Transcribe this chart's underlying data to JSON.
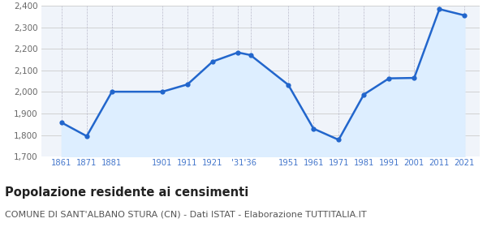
{
  "years": [
    1861,
    1871,
    1881,
    1901,
    1911,
    1921,
    1931,
    1936,
    1951,
    1961,
    1971,
    1981,
    1991,
    2001,
    2011,
    2021
  ],
  "population": [
    1858,
    1795,
    2001,
    2001,
    2035,
    2141,
    2183,
    2171,
    2033,
    1830,
    1778,
    1988,
    2063,
    2065,
    2384,
    2355
  ],
  "ylim": [
    1700,
    2400
  ],
  "yticks": [
    1700,
    1800,
    1900,
    2000,
    2100,
    2200,
    2300,
    2400
  ],
  "line_color": "#2266cc",
  "fill_color": "#ddeeff",
  "marker_color": "#2266cc",
  "grid_color_h": "#cccccc",
  "grid_color_v": "#bbbbcc",
  "bg_color": "#f0f4fa",
  "title": "Popolazione residente ai censimenti",
  "subtitle": "COMUNE DI SANT'ALBANO STURA (CN) - Dati ISTAT - Elaborazione TUTTITALIA.IT",
  "title_fontsize": 10.5,
  "subtitle_fontsize": 8,
  "tick_label_color": "#4477cc",
  "ytick_color": "#666666",
  "xtick_positions": [
    1861,
    1871,
    1881,
    1901,
    1911,
    1921,
    1933.5,
    1951,
    1961,
    1971,
    1981,
    1991,
    2001,
    2011,
    2021
  ],
  "xtick_labels": [
    "1861",
    "1871",
    "1881",
    "1901",
    "1911",
    "1921",
    "'31'36",
    "1951",
    "1961",
    "1971",
    "1981",
    "1991",
    "2001",
    "2011",
    "2021"
  ],
  "xlim_left": 1853,
  "xlim_right": 2027
}
